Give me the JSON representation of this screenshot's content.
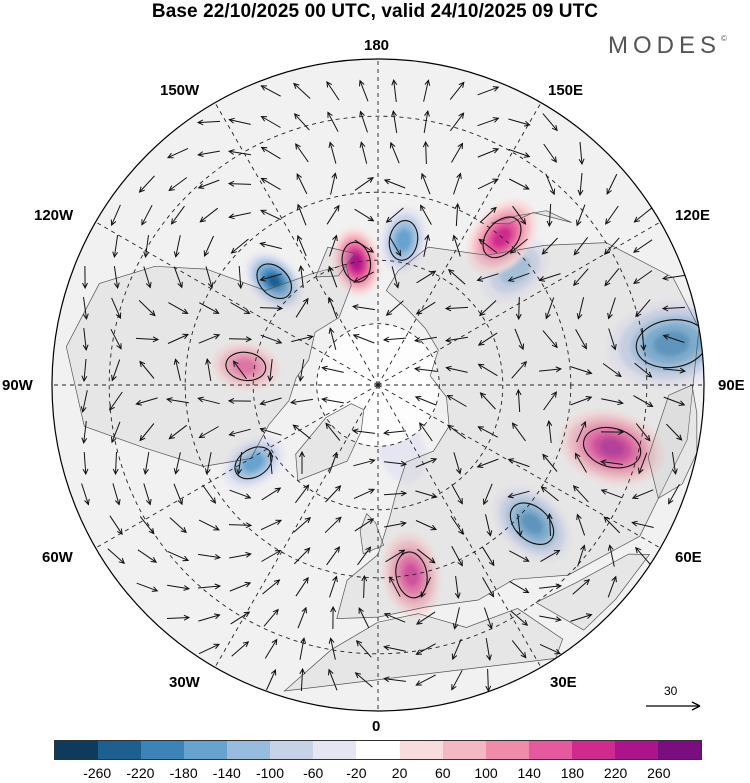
{
  "title": "Base 22/10/2025 00 UTC, valid 24/10/2025 09 UTC",
  "brand": "MODES",
  "brand_mark": "©",
  "longitude_labels": {
    "n180": "180",
    "w150": "150W",
    "e150": "150E",
    "w120": "120W",
    "e120": "120E",
    "w90": "90W",
    "e90": "90E",
    "w60": "60W",
    "e60": "60E",
    "w30": "30W",
    "e30": "30E",
    "s0": "0"
  },
  "reference_vector": {
    "label": "30"
  },
  "colorbar": {
    "colors": [
      "#0e3a5c",
      "#1d5f8e",
      "#3c84b8",
      "#66a3cf",
      "#98bcdd",
      "#c6d2e8",
      "#e6e6f2",
      "#ffffff",
      "#f9dcdc",
      "#f4b8c3",
      "#ee8caa",
      "#e55a9c",
      "#cf2b8e",
      "#ab148a",
      "#7a0e80"
    ],
    "labels": [
      "-260",
      "-220",
      "-180",
      "-140",
      "-100",
      "-60",
      "-20",
      "20",
      "60",
      "100",
      "140",
      "180",
      "220",
      "260"
    ]
  },
  "anomaly_centers": [
    {
      "sign": "negative",
      "lon": 170,
      "lat": 55,
      "value": -150
    },
    {
      "sign": "positive",
      "lon": -170,
      "lat": 60,
      "value": 230
    },
    {
      "sign": "negative",
      "lon": -135,
      "lat": 55,
      "value": -240
    },
    {
      "sign": "positive",
      "lon": -98,
      "lat": 58,
      "value": 170
    },
    {
      "sign": "negative",
      "lon": -58,
      "lat": 55,
      "value": -170
    },
    {
      "sign": "positive",
      "lon": 10,
      "lat": 45,
      "value": 190
    },
    {
      "sign": "negative",
      "lon": 48,
      "lat": 42,
      "value": -220
    },
    {
      "sign": "positive",
      "lon": 75,
      "lat": 35,
      "value": 240
    },
    {
      "sign": "negative",
      "lon": 98,
      "lat": 25,
      "value": -200
    },
    {
      "sign": "negative",
      "lon": 130,
      "lat": 48,
      "value": -110
    },
    {
      "sign": "positive",
      "lon": 140,
      "lat": 45,
      "value": 220
    },
    {
      "sign": "negative",
      "lon": 20,
      "lat": 73,
      "value": -40
    }
  ]
}
